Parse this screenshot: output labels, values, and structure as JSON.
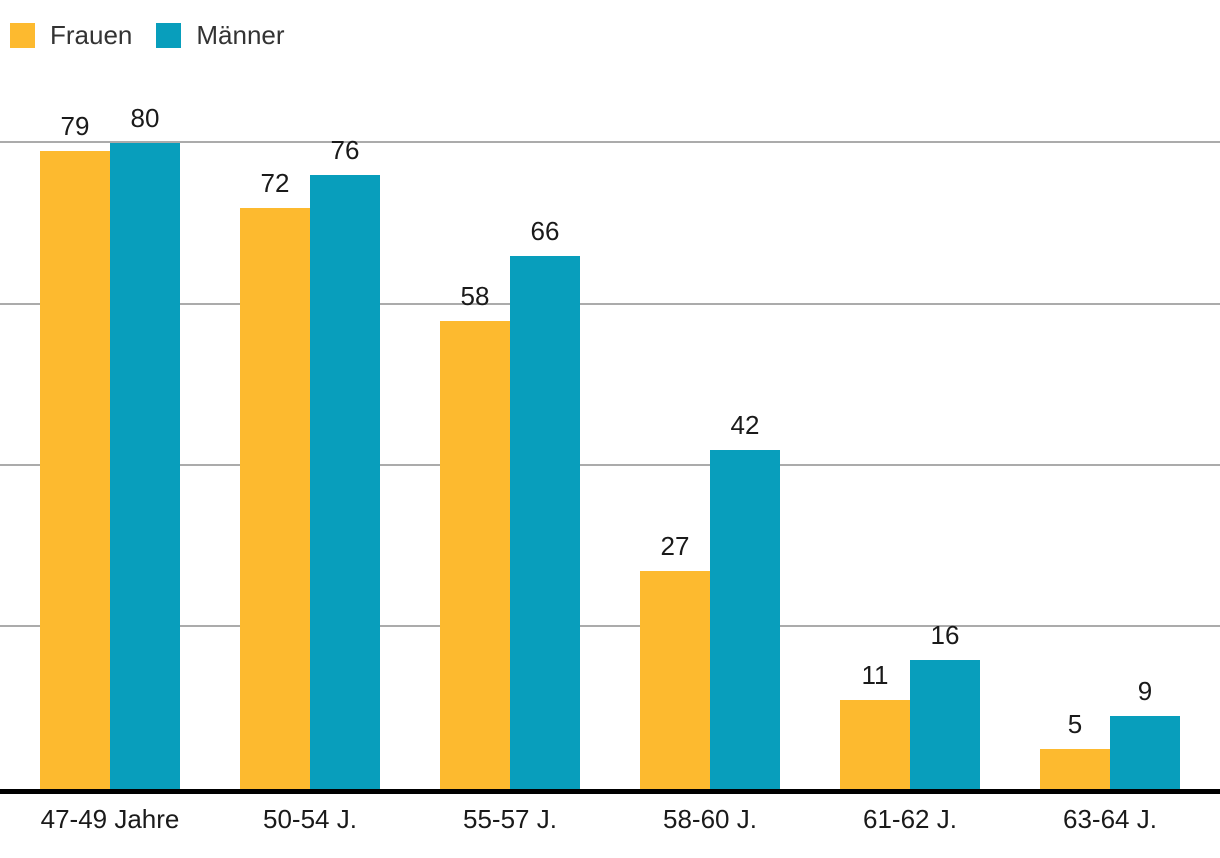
{
  "chart_data": {
    "type": "bar",
    "categories": [
      "47-49 Jahre",
      "50-54 J.",
      "55-57 J.",
      "58-60 J.",
      "61-62 J.",
      "63-64 J."
    ],
    "series": [
      {
        "name": "Frauen",
        "color": "#FDBA2F",
        "values": [
          79,
          72,
          58,
          27,
          11,
          5
        ]
      },
      {
        "name": "Männer",
        "color": "#089EBC",
        "values": [
          80,
          76,
          66,
          42,
          16,
          9
        ]
      }
    ],
    "title": "",
    "xlabel": "",
    "ylabel": "",
    "ylim": [
      0,
      80
    ],
    "gridlines": [
      20,
      40,
      60,
      80
    ],
    "grid_on": true,
    "grid_color": "#ababab",
    "axis_color": "#000000",
    "label_color": "#1a1a1a",
    "legend_text_color": "#333333",
    "value_labels": true,
    "legend_position": "top-left"
  }
}
